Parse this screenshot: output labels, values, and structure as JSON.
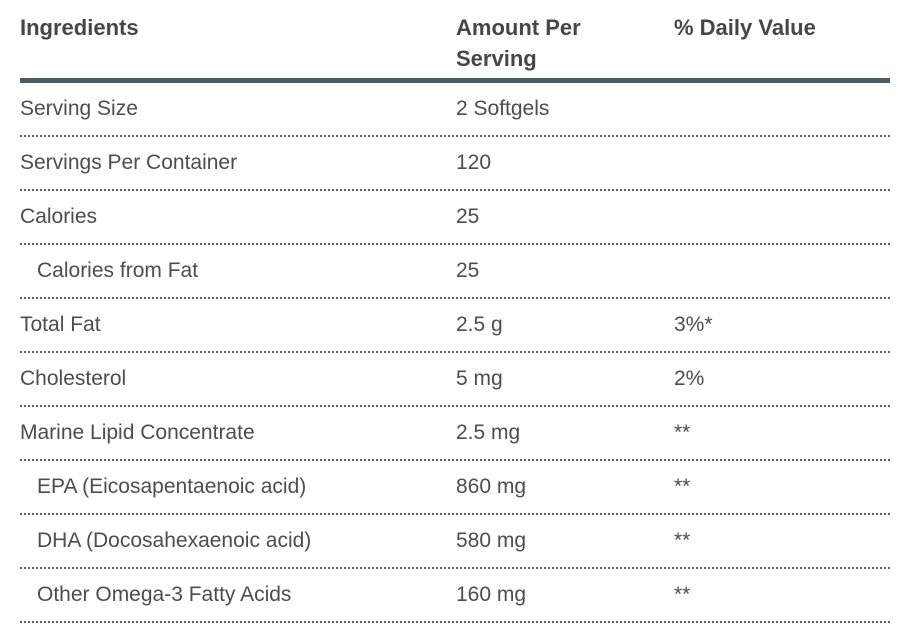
{
  "table": {
    "columns": [
      {
        "label": "Ingredients"
      },
      {
        "label": "Amount Per Serving"
      },
      {
        "label": "% Daily Value"
      }
    ],
    "rows": [
      {
        "ingredient": "Serving Size",
        "amount": "2 Softgels",
        "daily_value": "",
        "indent": false
      },
      {
        "ingredient": "Servings Per Container",
        "amount": "120",
        "daily_value": "",
        "indent": false
      },
      {
        "ingredient": "Calories",
        "amount": "25",
        "daily_value": "",
        "indent": false
      },
      {
        "ingredient": "Calories from Fat",
        "amount": "25",
        "daily_value": "",
        "indent": true
      },
      {
        "ingredient": "Total Fat",
        "amount": "2.5 g",
        "daily_value": "3%*",
        "indent": false
      },
      {
        "ingredient": "Cholesterol",
        "amount": "5 mg",
        "daily_value": "2%",
        "indent": false
      },
      {
        "ingredient": "Marine Lipid Concentrate",
        "amount": "2.5 mg",
        "daily_value": "**",
        "indent": false
      },
      {
        "ingredient": "EPA (Eicosapentaenoic acid)",
        "amount": "860 mg",
        "daily_value": "**",
        "indent": true
      },
      {
        "ingredient": "DHA (Docosahexaenoic acid)",
        "amount": "580 mg",
        "daily_value": "**",
        "indent": true
      },
      {
        "ingredient": "Other Omega-3 Fatty Acids",
        "amount": "160 mg",
        "daily_value": "**",
        "indent": true
      }
    ],
    "colors": {
      "body_text": "#4d4d4d",
      "header_text": "#464646",
      "header_rule": "#4e5c66",
      "row_rule": "#5a6670",
      "background": "#ffffff"
    }
  }
}
